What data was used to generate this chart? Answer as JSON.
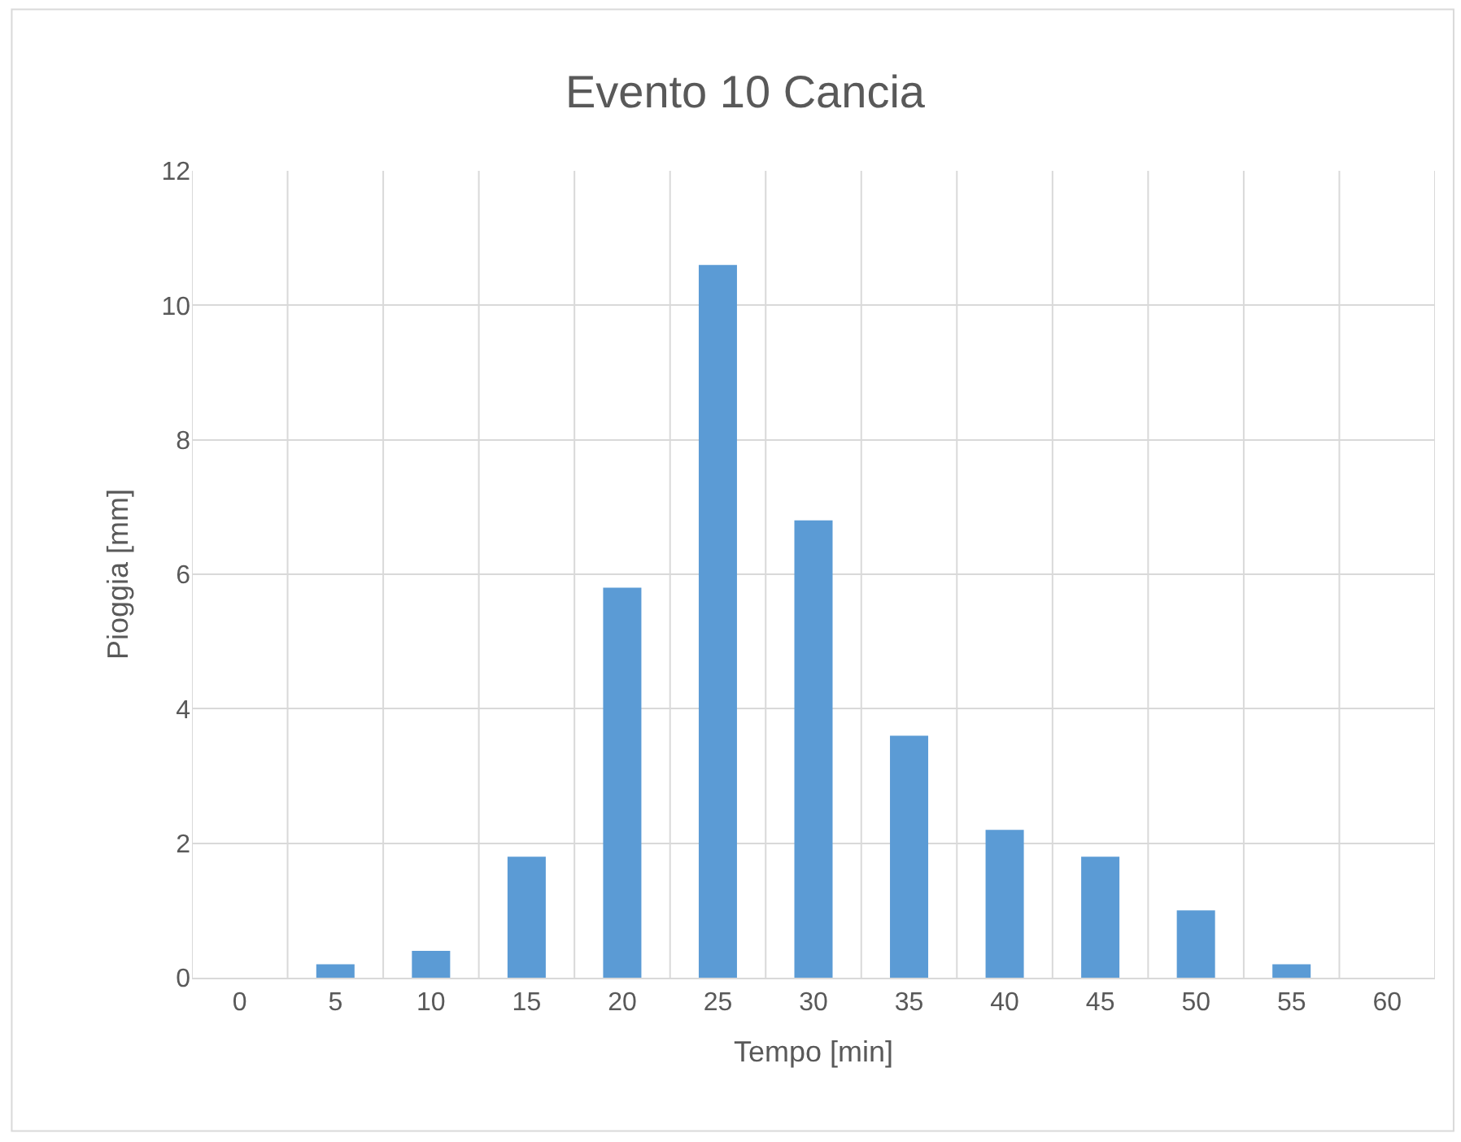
{
  "chart_data": {
    "type": "bar",
    "title": "Evento 10 Cancia",
    "xlabel": "Tempo [min]",
    "ylabel": "Pioggia [mm]",
    "categories": [
      "0",
      "5",
      "10",
      "15",
      "20",
      "25",
      "30",
      "35",
      "40",
      "45",
      "50",
      "55",
      "60"
    ],
    "values": [
      0,
      0.2,
      0.4,
      1.8,
      5.8,
      10.6,
      6.8,
      3.6,
      2.2,
      1.8,
      1.0,
      0.2,
      0
    ],
    "color": "#5b9bd5",
    "ylim": [
      0,
      12
    ],
    "yticks": [
      0,
      2,
      4,
      6,
      8,
      10,
      12
    ],
    "grid": true
  }
}
